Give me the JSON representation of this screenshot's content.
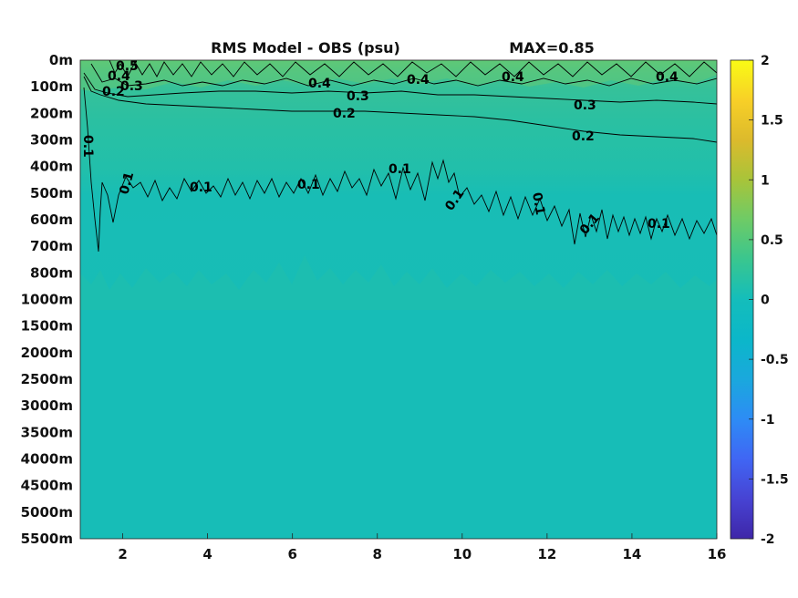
{
  "chart_data": {
    "type": "heatmap",
    "title": "RMS Model - OBS (psu)",
    "max_label": "MAX=0.85",
    "x_ticks": [
      2,
      4,
      6,
      8,
      10,
      12,
      14,
      16
    ],
    "xlim": [
      1,
      16
    ],
    "y_ticks": [
      "0m",
      "100m",
      "200m",
      "300m",
      "400m",
      "500m",
      "600m",
      "700m",
      "800m",
      "1000m",
      "1500m",
      "2000m",
      "2500m",
      "3000m",
      "3500m",
      "4000m",
      "4500m",
      "5000m",
      "5500m"
    ],
    "colorbar": {
      "ticks": [
        "2",
        "1.5",
        "1",
        "0.5",
        "0",
        "-0.5",
        "-1",
        "-1.5",
        "-2"
      ],
      "range": [
        -2,
        2
      ],
      "colormap": [
        "#3e26a8",
        "#4743d3",
        "#4066f4",
        "#2d8cf5",
        "#1aa8dd",
        "#0abcc0",
        "#2bc59c",
        "#63cb72",
        "#a0c43e",
        "#d9ba2c",
        "#fcc43a",
        "#f5e125",
        "#f9fb15"
      ]
    },
    "contour_levels": [
      0.1,
      0.2,
      0.3,
      0.4,
      0.5
    ],
    "contours": [
      {
        "level": 0.1,
        "label": "0.1",
        "path": "boundary-100m-700m"
      },
      {
        "level": 0.2,
        "label": "0.2",
        "path": "150m-300m"
      },
      {
        "level": 0.3,
        "label": "0.3",
        "path": "100m-160m"
      },
      {
        "level": 0.4,
        "label": "0.4",
        "path": "0m-100m"
      },
      {
        "level": 0.5,
        "label": "0.5",
        "path": "0m-50m"
      }
    ],
    "contour_labels": [
      {
        "text": "0.5"
      },
      {
        "text": "0.4"
      },
      {
        "text": "0.3"
      },
      {
        "text": "0.2"
      },
      {
        "text": "0.4"
      },
      {
        "text": "0.3"
      },
      {
        "text": "0.2"
      },
      {
        "text": "0.4"
      },
      {
        "text": "0.4"
      },
      {
        "text": "0.3"
      },
      {
        "text": "0.2"
      },
      {
        "text": "0.4"
      },
      {
        "text": "0.1"
      },
      {
        "text": "0.1"
      },
      {
        "text": "0.1"
      },
      {
        "text": "0.1"
      },
      {
        "text": "0.1"
      },
      {
        "text": "0.1"
      },
      {
        "text": "0.1"
      },
      {
        "text": "0.1"
      },
      {
        "text": "0.1"
      }
    ],
    "background_value": 0.1,
    "grid": false
  }
}
